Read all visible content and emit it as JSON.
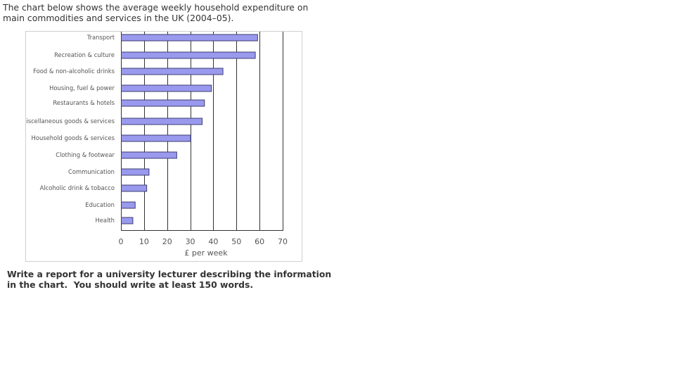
{
  "intro": "The chart below shows the average weekly household expenditure on main commodities and services in the UK (2004–05).",
  "task": "Write a report for a university lecturer describing the information in the chart.  You should write at least 150 words.",
  "chart_data": {
    "type": "bar",
    "orientation": "horizontal",
    "title": "",
    "xlabel": "£ per week",
    "ylabel": "",
    "categories": [
      "Transport",
      "Recreation & culture",
      "Food & non-alcoholic drinks",
      "Housing, fuel & power",
      "Restaurants & hotels",
      "Miscellaneous goods & services",
      "Household goods & services",
      "Clothing & footwear",
      "Communication",
      "Alcoholic drink & tobacco",
      "Education",
      "Health"
    ],
    "values": [
      59,
      58,
      44,
      39,
      36,
      35,
      30,
      24,
      12,
      11,
      6,
      5
    ],
    "xlim": [
      0,
      70
    ],
    "xticks": [
      0,
      10,
      20,
      30,
      40,
      50,
      60,
      70
    ],
    "grid": true,
    "legend": "none",
    "colors": {
      "bar_fill": "#9999ee",
      "bar_stroke": "#3d3d73",
      "grid": "#333333"
    }
  }
}
